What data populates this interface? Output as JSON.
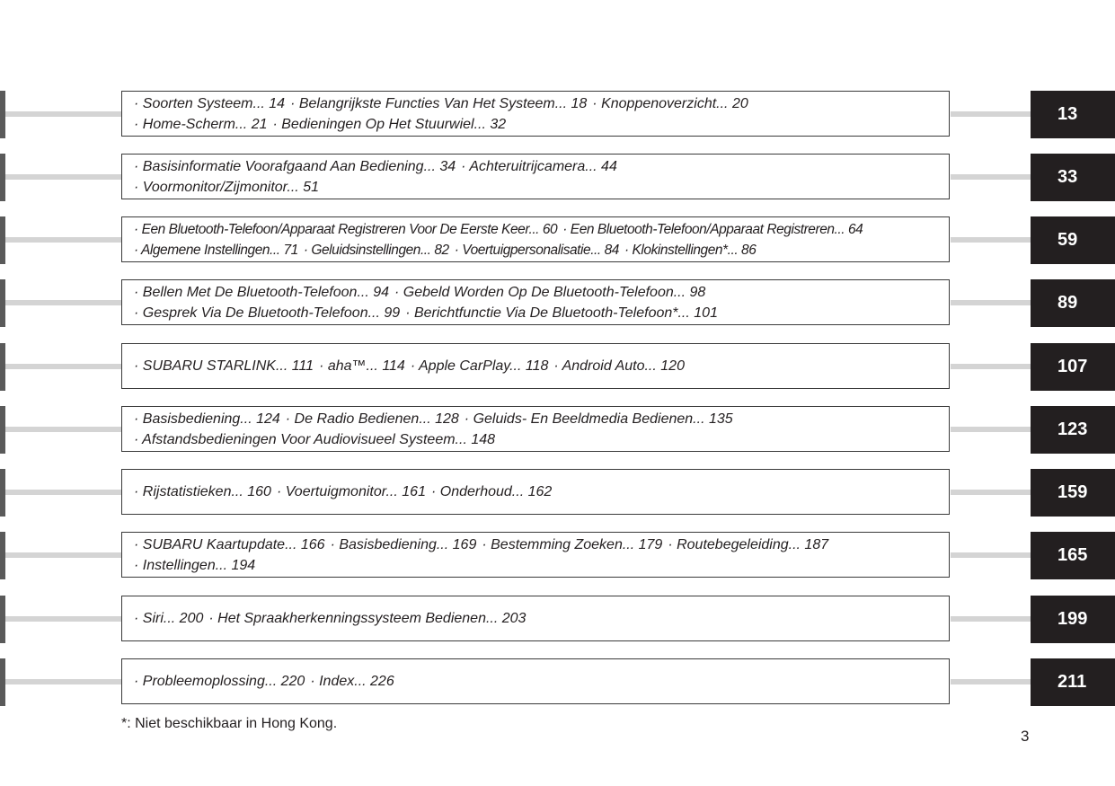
{
  "sections": [
    {
      "page": "13",
      "lines": [
        [
          "· Soorten Systeem... 14",
          "· Belangrijkste Functies Van Het Systeem... 18",
          "· Knoppenoverzicht... 20"
        ],
        [
          "· Home-Scherm... 21",
          "· Bedieningen Op Het Stuurwiel... 32"
        ]
      ]
    },
    {
      "page": "33",
      "lines": [
        [
          "· Basisinformatie Voorafgaand Aan Bediening... 34",
          "· Achteruitrijcamera... 44"
        ],
        [
          "· Voormonitor/Zijmonitor... 51"
        ]
      ]
    },
    {
      "page": "59",
      "lines": [
        [
          "· Een Bluetooth-Telefoon/Apparaat Registreren Voor De Eerste Keer... 60",
          "· Een Bluetooth-Telefoon/Apparaat Registreren... 64"
        ],
        [
          "· Algemene Instellingen... 71",
          "· Geluidsinstellingen... 82",
          "· Voertuigpersonalisatie... 84",
          "· Klokinstellingen*... 86"
        ]
      ]
    },
    {
      "page": "89",
      "lines": [
        [
          "· Bellen Met De Bluetooth-Telefoon... 94",
          "· Gebeld Worden Op De Bluetooth-Telefoon... 98"
        ],
        [
          "· Gesprek Via De Bluetooth-Telefoon... 99",
          "· Berichtfunctie Via De Bluetooth-Telefoon*... 101"
        ]
      ]
    },
    {
      "page": "107",
      "lines": [
        [
          "· SUBARU STARLINK... 111",
          "· aha™... 114",
          "· Apple CarPlay... 118",
          "· Android Auto... 120"
        ]
      ]
    },
    {
      "page": "123",
      "lines": [
        [
          "· Basisbediening... 124",
          "· De Radio Bedienen... 128",
          "· Geluids- En Beeldmedia Bedienen... 135"
        ],
        [
          "· Afstandsbedieningen Voor Audiovisueel Systeem... 148"
        ]
      ]
    },
    {
      "page": "159",
      "lines": [
        [
          "· Rijstatistieken... 160",
          "· Voertuigmonitor... 161",
          "· Onderhoud... 162"
        ]
      ]
    },
    {
      "page": "165",
      "lines": [
        [
          "· SUBARU Kaartupdate... 166",
          "· Basisbediening... 169",
          "· Bestemming Zoeken... 179",
          "· Routebegeleiding... 187"
        ],
        [
          "· Instellingen... 194"
        ]
      ]
    },
    {
      "page": "199",
      "lines": [
        [
          "· Siri... 200",
          "· Het Spraakherkenningssysteem Bedienen... 203"
        ]
      ]
    },
    {
      "page": "211",
      "lines": [
        [
          "· Probleemoplossing... 220",
          "· Index... 226"
        ]
      ]
    }
  ],
  "footnote": "*: Niet beschikbaar in Hong Kong.",
  "page_number": "3",
  "colors": {
    "badge": "#231f20",
    "connector": "#d4d4d4",
    "edge_bar": "#5a5a5a"
  }
}
